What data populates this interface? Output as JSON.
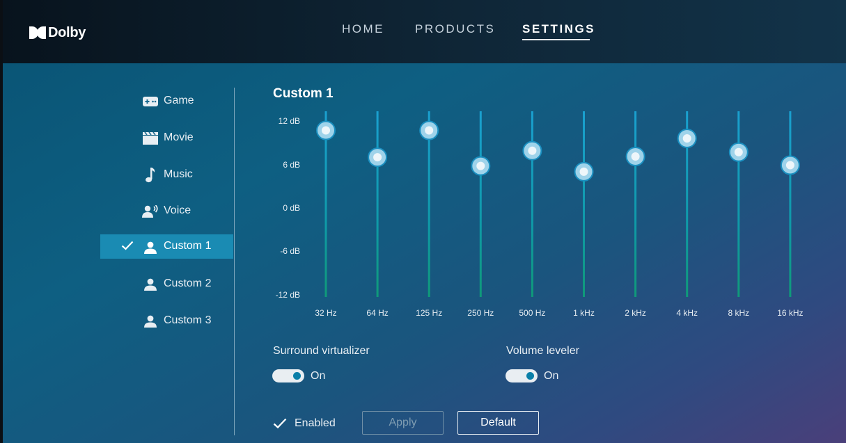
{
  "brand": {
    "name": "Dolby",
    "logo_icon": "dolby-double-d-icon"
  },
  "nav": {
    "items": [
      {
        "label": "HOME",
        "active": false
      },
      {
        "label": "PRODUCTS",
        "active": false
      },
      {
        "label": "SETTINGS",
        "active": true
      }
    ]
  },
  "sidebar": {
    "items": [
      {
        "label": "Game",
        "icon": "gamepad-icon",
        "selected": false
      },
      {
        "label": "Movie",
        "icon": "clapperboard-icon",
        "selected": false
      },
      {
        "label": "Music",
        "icon": "music-note-icon",
        "selected": false
      },
      {
        "label": "Voice",
        "icon": "voice-person-icon",
        "selected": false
      },
      {
        "label": "Custom 1",
        "icon": "person-icon",
        "selected": true
      },
      {
        "label": "Custom 2",
        "icon": "person-icon",
        "selected": false
      },
      {
        "label": "Custom 3",
        "icon": "person-icon",
        "selected": false
      }
    ]
  },
  "equalizer": {
    "title": "Custom 1",
    "db_labels": [
      "12 dB",
      "6 dB",
      "0 dB",
      "-6 dB",
      "-12 dB"
    ],
    "db_range": [
      -12,
      12
    ],
    "bands": [
      {
        "freq": "32 Hz",
        "gain_db": 10.7
      },
      {
        "freq": "64 Hz",
        "gain_db": 7.0
      },
      {
        "freq": "125 Hz",
        "gain_db": 10.7
      },
      {
        "freq": "250 Hz",
        "gain_db": 5.8
      },
      {
        "freq": "500 Hz",
        "gain_db": 7.9
      },
      {
        "freq": "1 kHz",
        "gain_db": 5.0
      },
      {
        "freq": "2 kHz",
        "gain_db": 7.1
      },
      {
        "freq": "4 kHz",
        "gain_db": 9.6
      },
      {
        "freq": "8 kHz",
        "gain_db": 7.7
      },
      {
        "freq": "16 kHz",
        "gain_db": 5.9
      }
    ]
  },
  "options": {
    "surround": {
      "label": "Surround virtualizer",
      "state": "On"
    },
    "leveler": {
      "label": "Volume leveler",
      "state": "On"
    }
  },
  "footer": {
    "enabled_label": "Enabled",
    "apply_label": "Apply",
    "default_label": "Default"
  },
  "colors": {
    "accent": "#1a8bb3",
    "slider_track_top": "#1aa0d0",
    "slider_track_bottom": "#0f9a78",
    "knob": "#cfe6f2"
  }
}
